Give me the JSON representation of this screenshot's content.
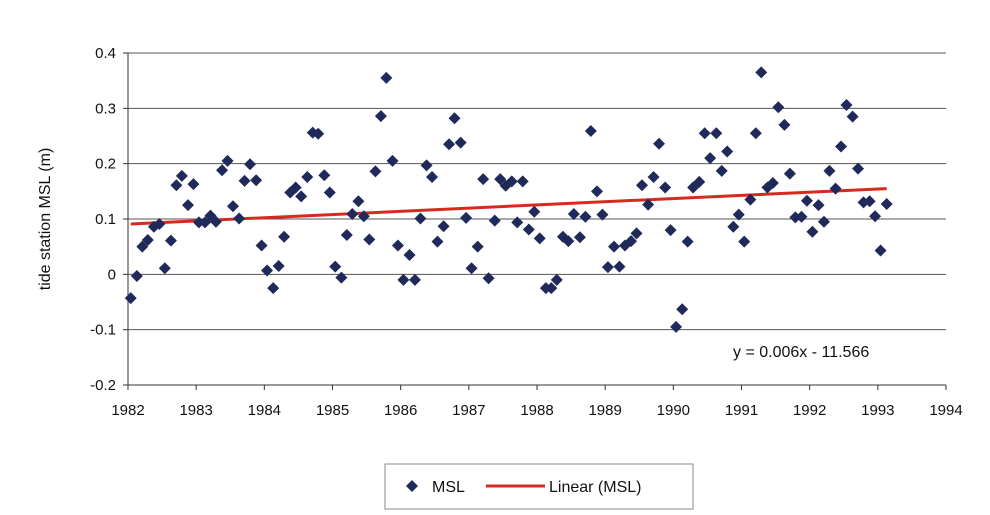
{
  "chart_data": {
    "type": "scatter",
    "title": "",
    "xlabel": "",
    "ylabel": "tide station MSL (m)",
    "xlim": [
      1982,
      1994
    ],
    "ylim": [
      -0.2,
      0.4
    ],
    "x_ticks": [
      "1982",
      "1983",
      "1984",
      "1985",
      "1986",
      "1987",
      "1988",
      "1989",
      "1990",
      "1991",
      "1992",
      "1993",
      "1994"
    ],
    "y_ticks": [
      "0.4",
      "0.3",
      "0.2",
      "0.1",
      "0",
      "-0.1",
      "-0.2"
    ],
    "grid": true,
    "legend_position": "bottom",
    "legend": [
      "MSL",
      "Linear (MSL)"
    ],
    "trendline_equation": "y = 0.006x - 11.566",
    "colors": {
      "points": "#1f2a5a",
      "trend": "#d42a1f",
      "grid": "#555555"
    },
    "series": [
      {
        "name": "MSL",
        "points": [
          [
            1982.04,
            -0.043
          ],
          [
            1982.13,
            -0.003
          ],
          [
            1982.21,
            0.05
          ],
          [
            1982.29,
            0.062
          ],
          [
            1982.38,
            0.086
          ],
          [
            1982.46,
            0.091
          ],
          [
            1982.54,
            0.011
          ],
          [
            1982.63,
            0.061
          ],
          [
            1982.71,
            0.161
          ],
          [
            1982.79,
            0.178
          ],
          [
            1982.88,
            0.125
          ],
          [
            1982.96,
            0.163
          ],
          [
            1983.04,
            0.094
          ],
          [
            1983.13,
            0.094
          ],
          [
            1983.21,
            0.106
          ],
          [
            1983.29,
            0.095
          ],
          [
            1983.38,
            0.188
          ],
          [
            1983.46,
            0.205
          ],
          [
            1983.54,
            0.123
          ],
          [
            1983.63,
            0.101
          ],
          [
            1983.71,
            0.169
          ],
          [
            1983.79,
            0.199
          ],
          [
            1983.88,
            0.17
          ],
          [
            1983.96,
            0.052
          ],
          [
            1984.04,
            0.007
          ],
          [
            1984.13,
            -0.025
          ],
          [
            1984.21,
            0.015
          ],
          [
            1984.29,
            0.068
          ],
          [
            1984.38,
            0.148
          ],
          [
            1984.46,
            0.157
          ],
          [
            1984.54,
            0.141
          ],
          [
            1984.63,
            0.176
          ],
          [
            1984.71,
            0.256
          ],
          [
            1984.79,
            0.254
          ],
          [
            1984.88,
            0.179
          ],
          [
            1984.96,
            0.148
          ],
          [
            1985.04,
            0.014
          ],
          [
            1985.13,
            -0.006
          ],
          [
            1985.21,
            0.071
          ],
          [
            1985.29,
            0.109
          ],
          [
            1985.38,
            0.132
          ],
          [
            1985.46,
            0.105
          ],
          [
            1985.54,
            0.063
          ],
          [
            1985.63,
            0.186
          ],
          [
            1985.71,
            0.286
          ],
          [
            1985.79,
            0.355
          ],
          [
            1985.88,
            0.205
          ],
          [
            1985.96,
            0.052
          ],
          [
            1986.04,
            -0.01
          ],
          [
            1986.13,
            0.035
          ],
          [
            1986.21,
            -0.01
          ],
          [
            1986.29,
            0.101
          ],
          [
            1986.38,
            0.197
          ],
          [
            1986.46,
            0.176
          ],
          [
            1986.54,
            0.059
          ],
          [
            1986.63,
            0.087
          ],
          [
            1986.71,
            0.235
          ],
          [
            1986.79,
            0.282
          ],
          [
            1986.88,
            0.238
          ],
          [
            1986.96,
            0.102
          ],
          [
            1987.04,
            0.011
          ],
          [
            1987.13,
            0.05
          ],
          [
            1987.21,
            0.172
          ],
          [
            1987.29,
            -0.007
          ],
          [
            1987.38,
            0.097
          ],
          [
            1987.46,
            0.172
          ],
          [
            1987.54,
            0.16
          ],
          [
            1987.63,
            0.168
          ],
          [
            1987.71,
            0.094
          ],
          [
            1987.79,
            0.168
          ],
          [
            1987.88,
            0.081
          ],
          [
            1987.96,
            0.113
          ],
          [
            1988.04,
            0.065
          ],
          [
            1988.13,
            -0.025
          ],
          [
            1988.21,
            -0.025
          ],
          [
            1988.29,
            -0.01
          ],
          [
            1988.38,
            0.068
          ],
          [
            1988.46,
            0.06
          ],
          [
            1988.54,
            0.109
          ],
          [
            1988.63,
            0.067
          ],
          [
            1988.71,
            0.104
          ],
          [
            1988.79,
            0.259
          ],
          [
            1988.88,
            0.15
          ],
          [
            1988.96,
            0.108
          ],
          [
            1989.04,
            0.013
          ],
          [
            1989.13,
            0.05
          ],
          [
            1989.21,
            0.014
          ],
          [
            1989.29,
            0.052
          ],
          [
            1989.38,
            0.06
          ],
          [
            1989.46,
            0.074
          ],
          [
            1989.54,
            0.161
          ],
          [
            1989.63,
            0.126
          ],
          [
            1989.71,
            0.176
          ],
          [
            1989.79,
            0.236
          ],
          [
            1989.88,
            0.157
          ],
          [
            1989.96,
            0.08
          ],
          [
            1990.04,
            -0.095
          ],
          [
            1990.13,
            -0.063
          ],
          [
            1990.21,
            0.059
          ],
          [
            1990.29,
            0.157
          ],
          [
            1990.38,
            0.167
          ],
          [
            1990.46,
            0.255
          ],
          [
            1990.54,
            0.21
          ],
          [
            1990.63,
            0.255
          ],
          [
            1990.71,
            0.187
          ],
          [
            1990.79,
            0.222
          ],
          [
            1990.88,
            0.086
          ],
          [
            1990.96,
            0.108
          ],
          [
            1991.04,
            0.059
          ],
          [
            1991.13,
            0.135
          ],
          [
            1991.21,
            0.255
          ],
          [
            1991.29,
            0.365
          ],
          [
            1991.38,
            0.157
          ],
          [
            1991.46,
            0.165
          ],
          [
            1991.54,
            0.302
          ],
          [
            1991.63,
            0.27
          ],
          [
            1991.71,
            0.182
          ],
          [
            1991.79,
            0.103
          ],
          [
            1991.88,
            0.104
          ],
          [
            1991.96,
            0.133
          ],
          [
            1992.04,
            0.077
          ],
          [
            1992.13,
            0.125
          ],
          [
            1992.21,
            0.095
          ],
          [
            1992.29,
            0.187
          ],
          [
            1992.38,
            0.155
          ],
          [
            1992.46,
            0.231
          ],
          [
            1992.54,
            0.306
          ],
          [
            1992.63,
            0.285
          ],
          [
            1992.71,
            0.191
          ],
          [
            1992.79,
            0.13
          ],
          [
            1992.88,
            0.132
          ],
          [
            1992.96,
            0.105
          ],
          [
            1993.04,
            0.043
          ],
          [
            1993.13,
            0.127
          ]
        ]
      },
      {
        "name": "Linear (MSL)",
        "x": [
          1982.04,
          1993.13
        ],
        "y": [
          0.091,
          0.155
        ]
      }
    ]
  }
}
